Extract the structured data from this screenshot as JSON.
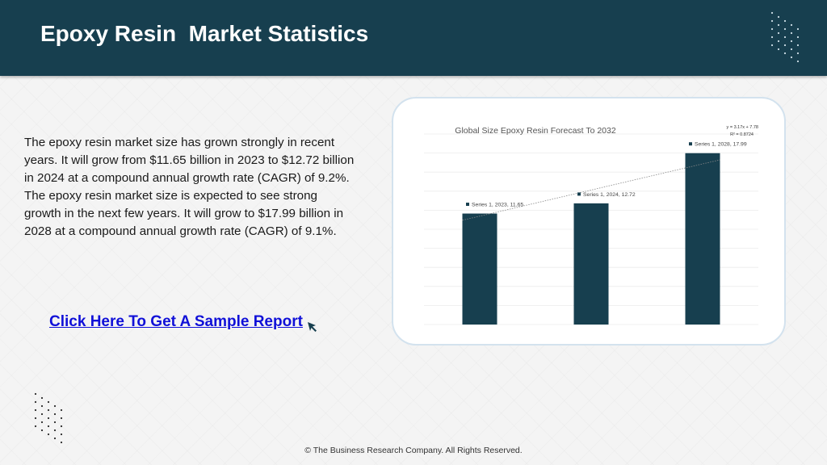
{
  "header": {
    "title": "Epoxy Resin  Market Statistics"
  },
  "content": {
    "paragraph": "The epoxy resin market size has grown strongly in recent years. It will grow from $11.65 billion in 2023 to $12.72 billion in 2024 at a compound annual growth rate (CAGR) of 9.2%. The epoxy resin market size is expected to see strong growth in the next few years. It will grow to $17.99 billion in 2028 at a compound annual growth rate (CAGR) of 9.1%.",
    "cta_label": "Click Here To Get A Sample Report",
    "cursor_icon": "cursor-arrow-icon"
  },
  "footer": {
    "text": "© The Business Research Company. All Rights Reserved."
  },
  "colors": {
    "header_bg": "#173f4f",
    "bar": "#173f4f",
    "link": "#1010d8"
  },
  "chart_data": {
    "type": "bar",
    "title": "Global Size Epoxy Resin  Forecast To 2032",
    "categories": [
      "2023",
      "2024",
      "2028"
    ],
    "series": [
      {
        "name": "Series 1",
        "values": [
          11.65,
          12.72,
          17.99
        ]
      }
    ],
    "data_labels": [
      "Series 1, 2023, 11.65",
      "Series 1, 2024, 12.72",
      "Series 1, 2028, 17.99"
    ],
    "trendline": {
      "equation": "y = 3.17x + 7.78",
      "r2": "R² = 0.8724",
      "slope": 3.17,
      "intercept": 7.78
    },
    "ylim": [
      0,
      20
    ],
    "grid": true,
    "legend": "none"
  }
}
